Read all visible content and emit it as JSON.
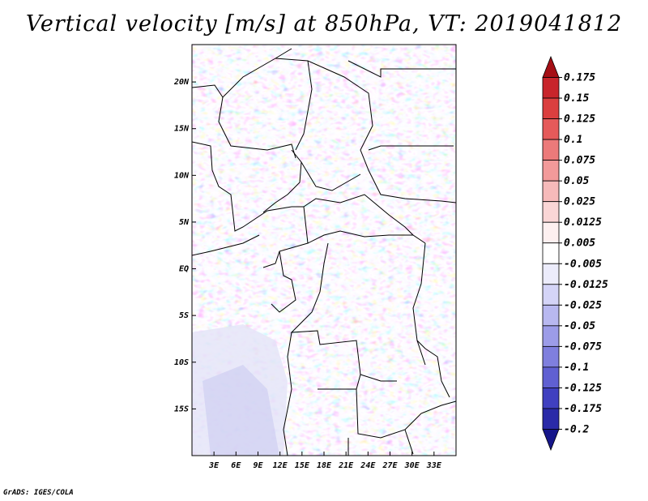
{
  "title": "Vertical velocity [m/s] at 850hPa, VT: 2019041812",
  "footer": "GrADS: IGES/COLA",
  "map": {
    "variable": "Vertical velocity",
    "units": "m/s",
    "level": "850hPa",
    "valid_time": "2019041812",
    "lon_range": [
      0,
      36
    ],
    "lat_range": [
      -20,
      24
    ],
    "lon_ticks": [
      "3E",
      "6E",
      "9E",
      "12E",
      "15E",
      "18E",
      "21E",
      "24E",
      "27E",
      "30E",
      "33E"
    ],
    "lat_ticks": [
      "20N",
      "15N",
      "10N",
      "5N",
      "EQ",
      "5S",
      "10S",
      "15S"
    ]
  },
  "colorbar": {
    "labels": [
      "0.175",
      "0.15",
      "0.125",
      "0.1",
      "0.075",
      "0.05",
      "0.025",
      "0.0125",
      "0.005",
      "-0.005",
      "-0.0125",
      "-0.025",
      "-0.05",
      "-0.075",
      "-0.1",
      "-0.125",
      "-0.175",
      "-0.2"
    ],
    "colors": [
      "#a50f15",
      "#c8252b",
      "#db3f3f",
      "#e55a5a",
      "#ec7a7a",
      "#f29a9a",
      "#f6baba",
      "#fad6d6",
      "#fdf0f0",
      "#ffffff",
      "#ececfb",
      "#d4d4f7",
      "#b8b8f0",
      "#9c9ce8",
      "#7f7fde",
      "#6060d2",
      "#4040c0",
      "#2a2aa8",
      "#16168a"
    ]
  }
}
